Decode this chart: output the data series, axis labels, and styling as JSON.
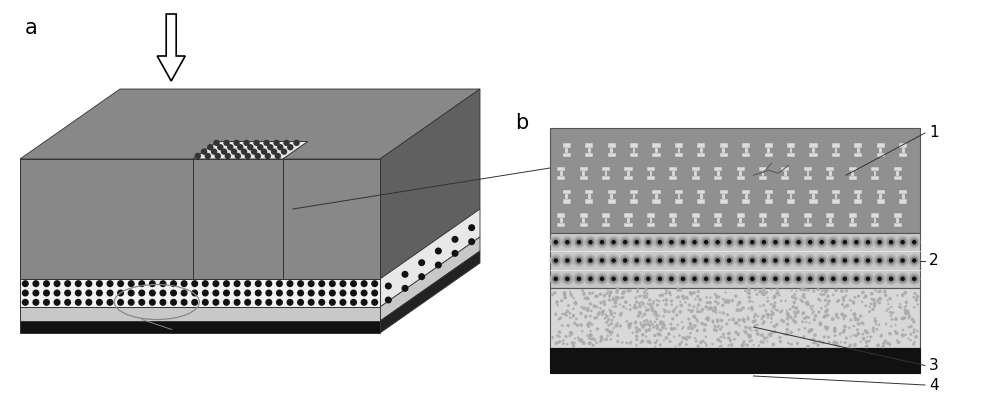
{
  "fig_width": 10.0,
  "fig_height": 4.13,
  "bg_color": "#ffffff",
  "label_a": "a",
  "label_b": "b",
  "numbers": [
    "1",
    "2",
    "3",
    "4"
  ],
  "colors": {
    "dark_gray": "#888888",
    "mid_gray": "#aaaaaa",
    "light_gray": "#c8c8c8",
    "very_light_gray": "#d8d8d8",
    "black": "#111111",
    "white": "#ffffff",
    "dot_bg": "#e8e8e8",
    "ring_bg": "#cccccc",
    "speckle_bg": "#d4d4d4",
    "layer1_bg": "#909090"
  }
}
